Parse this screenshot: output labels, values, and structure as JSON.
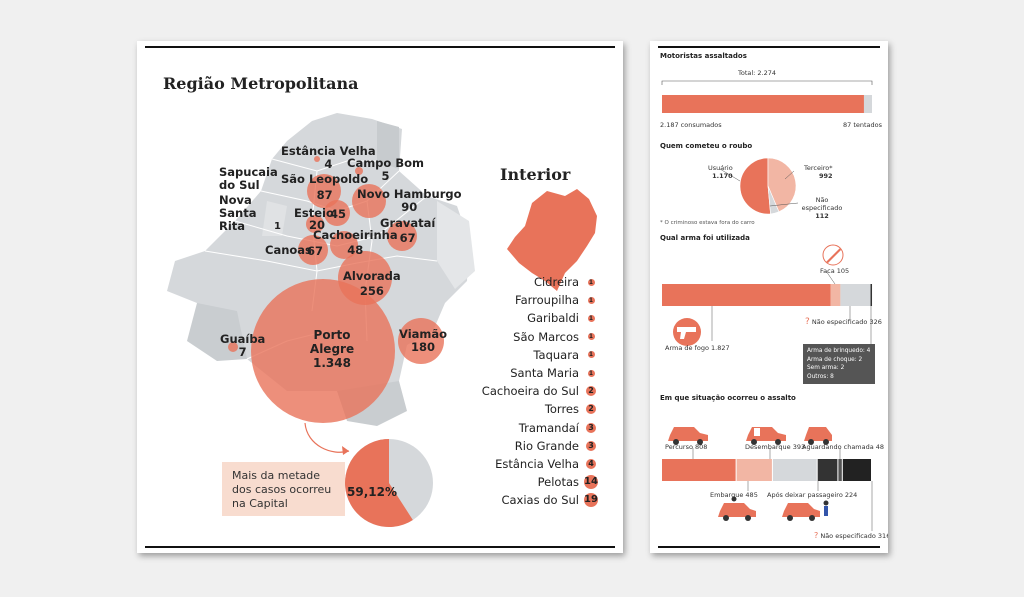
{
  "colors": {
    "accent": "#e8735a",
    "accent_light": "#f2b6a4",
    "map_gray": "#d5d8db",
    "dark": "#333333"
  },
  "metro": {
    "title": "Região Metropolitana",
    "cities": [
      {
        "name": "Estância Velha",
        "value": "4"
      },
      {
        "name": "Campo Bom",
        "value": "5"
      },
      {
        "name": "Sapucaia do Sul",
        "value": ""
      },
      {
        "name": "São Leopoldo",
        "value": "87"
      },
      {
        "name": "Novo Hamburgo",
        "value": "90"
      },
      {
        "name": "Nova Santa Rita",
        "value": "1"
      },
      {
        "name": "Esteio",
        "value": "45"
      },
      {
        "name": "Esteio",
        "value": "20"
      },
      {
        "name": "Gravataí",
        "value": "67"
      },
      {
        "name": "Cachoeirinha",
        "value": "48"
      },
      {
        "name": "Canoas",
        "value": "67"
      },
      {
        "name": "Alvorada",
        "value": "256"
      },
      {
        "name": "Porto Alegre",
        "value": "1.348"
      },
      {
        "name": "Viamão",
        "value": "180"
      },
      {
        "name": "Guaíba",
        "value": "7"
      }
    ],
    "callout": "Mais da metade dos casos ocorreu na Capital",
    "pie_label": "59,12%",
    "pie_share": 0.5912
  },
  "interior": {
    "title": "Interior",
    "items": [
      {
        "name": "Cidreira",
        "value": "1"
      },
      {
        "name": "Farroupilha",
        "value": "1"
      },
      {
        "name": "Garibaldi",
        "value": "1"
      },
      {
        "name": "São Marcos",
        "value": "1"
      },
      {
        "name": "Taquara",
        "value": "1"
      },
      {
        "name": "Santa Maria",
        "value": "1"
      },
      {
        "name": "Cachoeira do Sul",
        "value": "2"
      },
      {
        "name": "Torres",
        "value": "2"
      },
      {
        "name": "Tramandaí",
        "value": "3"
      },
      {
        "name": "Rio Grande",
        "value": "3"
      },
      {
        "name": "Estância Velha",
        "value": "4"
      },
      {
        "name": "Pelotas",
        "value": "14"
      },
      {
        "name": "Caxias do Sul",
        "value": "19"
      }
    ]
  },
  "drivers": {
    "title": "Motoristas assaltados",
    "total_label": "Total: 2.274",
    "consumados": "2.187 consumados",
    "tentados": "87 tentados",
    "consumados_n": 2187,
    "tentados_n": 87
  },
  "who": {
    "title": "Quem cometeu o roubo",
    "usuario": "Usuário",
    "usuario_n": "1.170",
    "terceiro": "Terceiro*",
    "terceiro_n": "992",
    "nao": "Não especificado",
    "nao_n": "112",
    "note": "* O criminoso estava fora do carro",
    "values": [
      1170,
      992,
      112
    ]
  },
  "weapon": {
    "title": "Qual arma foi utilizada",
    "faca": "Faca 105",
    "nao_esp": "Não especificado 326",
    "arma_fogo": "Arma de fogo 1.827",
    "others": [
      "Arma de brinquedo: 4",
      "Arma de choque: 2",
      "Sem arma: 2",
      "Outros: 8"
    ],
    "values": [
      1827,
      105,
      326,
      16
    ]
  },
  "situation": {
    "title": "Em que situação ocorreu o assalto",
    "percurso": "Percurso 808",
    "desembarque": "Desembarque 393",
    "aguardando": "Aguardando chamada 48",
    "embarque": "Embarque 485",
    "apos": "Após deixar passageiro 224",
    "nao_esp": "Não especificado 316",
    "values": [
      808,
      393,
      485,
      224,
      48,
      316
    ]
  }
}
